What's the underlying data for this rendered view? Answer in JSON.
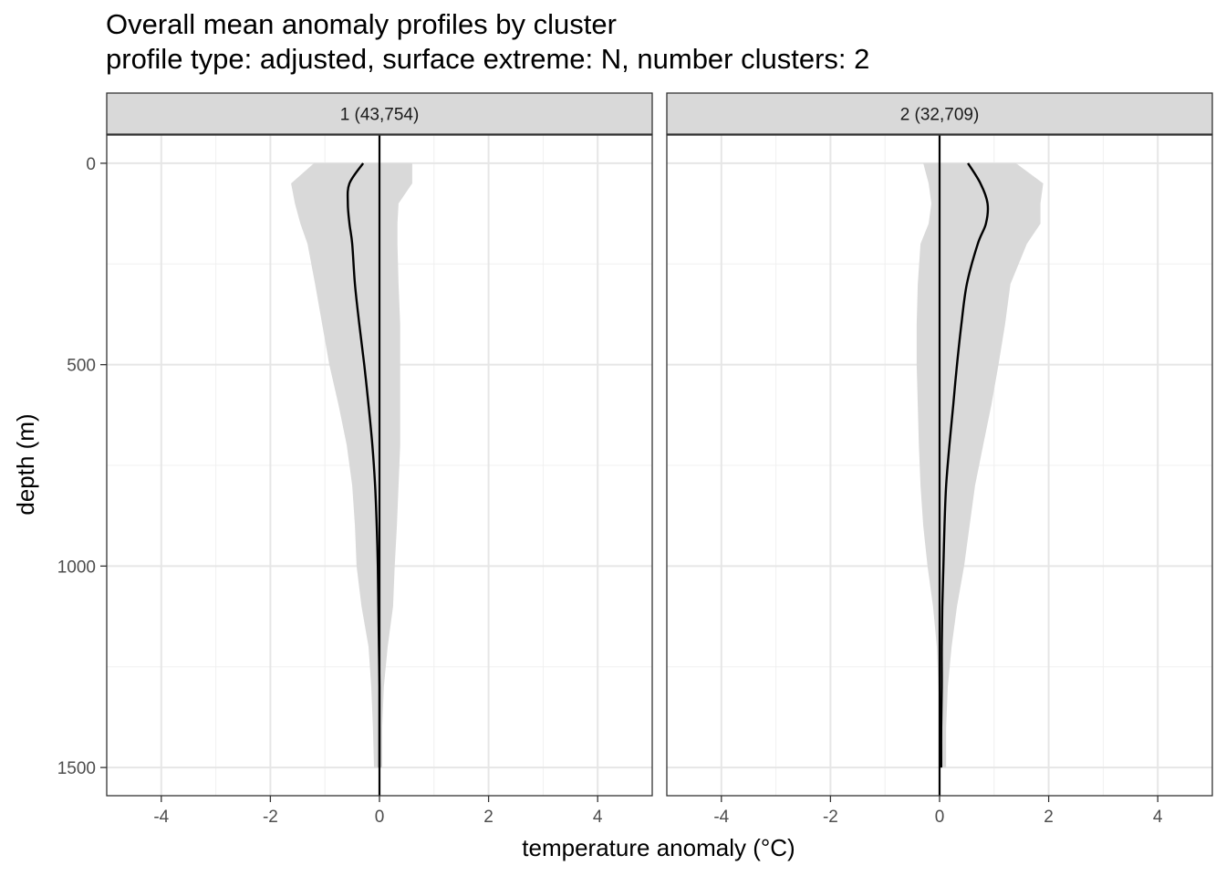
{
  "title": "Overall mean anomaly profiles by cluster",
  "subtitle": "profile type: adjusted, surface extreme: N, number clusters: 2",
  "chart_data": {
    "type": "line",
    "title": "Overall mean anomaly profiles by cluster",
    "subtitle": "profile type: adjusted, surface extreme: N, number clusters: 2",
    "xlabel": "temperature anomaly (°C)",
    "ylabel": "depth (m)",
    "xlim": [
      -5,
      5
    ],
    "ylim": [
      1570,
      -70
    ],
    "y_reversed": true,
    "x_ticks": [
      -4,
      -2,
      0,
      2,
      4
    ],
    "x_tick_labels": [
      "-4",
      "-2",
      "0",
      "2",
      "4"
    ],
    "y_ticks": [
      0,
      500,
      1000,
      1500
    ],
    "y_tick_labels": [
      "0",
      "500",
      "1000",
      "1500"
    ],
    "grid": true,
    "reference_line_x": 0,
    "depth": [
      0,
      50,
      100,
      150,
      200,
      300,
      400,
      500,
      600,
      700,
      800,
      900,
      1000,
      1100,
      1200,
      1300,
      1400,
      1500
    ],
    "panels": [
      {
        "label": "1 (43,754)",
        "mean": [
          -0.3,
          -0.55,
          -0.58,
          -0.55,
          -0.5,
          -0.45,
          -0.37,
          -0.28,
          -0.2,
          -0.13,
          -0.08,
          -0.05,
          -0.03,
          -0.02,
          -0.01,
          0.0,
          0.0,
          0.0
        ],
        "band_lower": [
          -1.2,
          -1.62,
          -1.55,
          -1.45,
          -1.32,
          -1.18,
          -1.05,
          -0.92,
          -0.75,
          -0.6,
          -0.5,
          -0.45,
          -0.42,
          -0.33,
          -0.2,
          -0.15,
          -0.12,
          -0.1
        ],
        "band_upper": [
          0.6,
          0.6,
          0.35,
          0.33,
          0.33,
          0.35,
          0.38,
          0.38,
          0.38,
          0.38,
          0.35,
          0.32,
          0.28,
          0.25,
          0.15,
          0.08,
          0.05,
          0.05
        ]
      },
      {
        "label": "2 (32,709)",
        "mean": [
          0.52,
          0.75,
          0.88,
          0.85,
          0.7,
          0.5,
          0.4,
          0.32,
          0.25,
          0.18,
          0.12,
          0.09,
          0.07,
          0.05,
          0.04,
          0.04,
          0.03,
          0.03
        ],
        "band_lower": [
          -0.3,
          -0.2,
          -0.15,
          -0.2,
          -0.35,
          -0.4,
          -0.42,
          -0.42,
          -0.4,
          -0.38,
          -0.35,
          -0.3,
          -0.22,
          -0.12,
          -0.05,
          -0.02,
          0.0,
          0.0
        ],
        "band_upper": [
          1.4,
          1.9,
          1.85,
          1.85,
          1.6,
          1.3,
          1.2,
          1.08,
          0.95,
          0.8,
          0.65,
          0.55,
          0.45,
          0.32,
          0.22,
          0.15,
          0.12,
          0.12
        ]
      }
    ]
  }
}
